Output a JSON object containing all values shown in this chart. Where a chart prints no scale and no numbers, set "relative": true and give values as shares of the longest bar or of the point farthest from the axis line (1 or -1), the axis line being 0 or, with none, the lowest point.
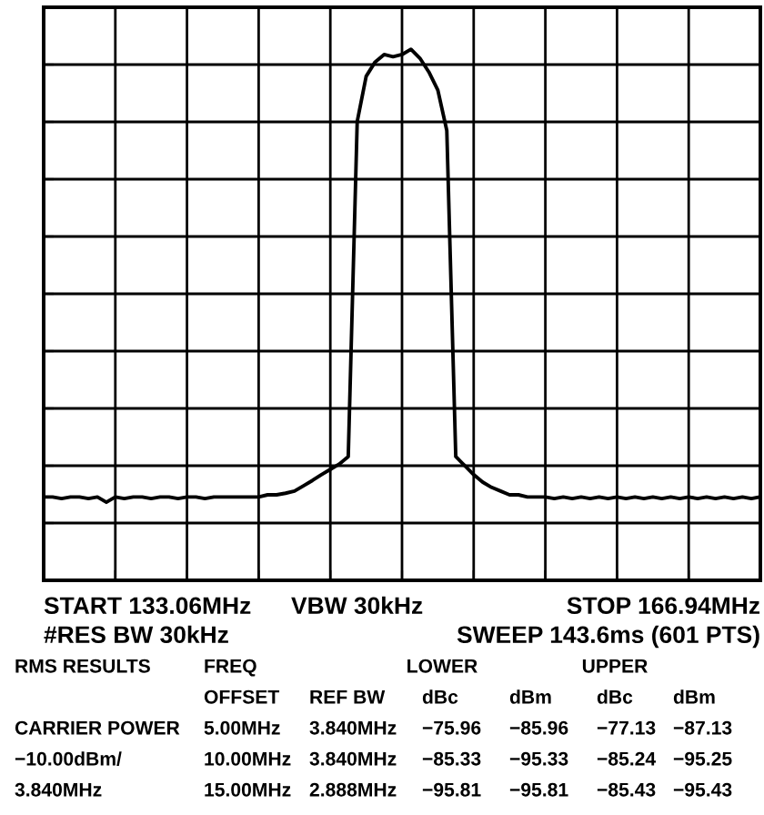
{
  "chart_data": {
    "type": "line",
    "relative": true,
    "categories": [
      null,
      null,
      null,
      null,
      null,
      null,
      null,
      null,
      null,
      null,
      null,
      null,
      null,
      null,
      null,
      null,
      null,
      null,
      null,
      null,
      null,
      null,
      null,
      null,
      null,
      null,
      null,
      null,
      null,
      null,
      null,
      null,
      null,
      null,
      null,
      null,
      null,
      null,
      null,
      null,
      null,
      null,
      null,
      null,
      null,
      null,
      null,
      null,
      null,
      null,
      null,
      null,
      null,
      null,
      null,
      null,
      null,
      null,
      null,
      null,
      null,
      null,
      null,
      null,
      null,
      null,
      null,
      null,
      null,
      null,
      null,
      null,
      null,
      null,
      null,
      null,
      null,
      null,
      null,
      null,
      null
    ],
    "series": [
      {
        "color": "#000000",
        "values": [
          0.157,
          0.157,
          0.154,
          0.157,
          0.157,
          0.154,
          0.157,
          0.147,
          0.157,
          0.154,
          0.157,
          0.157,
          0.154,
          0.157,
          0.157,
          0.154,
          0.157,
          0.157,
          0.154,
          0.157,
          0.157,
          0.157,
          0.157,
          0.157,
          0.157,
          0.161,
          0.161,
          0.164,
          0.168,
          0.178,
          0.188,
          0.199,
          0.209,
          0.219,
          0.233,
          0.864,
          0.949,
          0.976,
          0.99,
          0.986,
          0.99,
          1.0,
          0.983,
          0.957,
          0.923,
          0.847,
          0.233,
          0.216,
          0.199,
          0.185,
          0.175,
          0.168,
          0.161,
          0.161,
          0.157,
          0.157,
          0.157,
          0.154,
          0.157,
          0.154,
          0.157,
          0.154,
          0.157,
          0.154,
          0.157,
          0.154,
          0.157,
          0.154,
          0.157,
          0.154,
          0.157,
          0.154,
          0.157,
          0.154,
          0.157,
          0.154,
          0.157,
          0.154,
          0.157,
          0.154,
          0.157
        ]
      }
    ],
    "grid": true,
    "line_style": "solid",
    "marker": "none",
    "annotations": [
      "START 133.06MHz",
      "VBW 30kHz",
      "STOP 166.94MHz",
      "#RES BW 30kHz",
      "SWEEP 143.6ms (601 PTS)",
      "RMS RESULTS",
      "FREQ",
      "LOWER",
      "UPPER",
      "OFFSET",
      "REF BW",
      "dBc",
      "dBm",
      "dBc",
      "dBm",
      "CARRIER POWER",
      "5.00MHz",
      "3.840MHz",
      "−75.96",
      "−85.96",
      "−77.13",
      "−87.13",
      "−10.00dBm/",
      "10.00MHz",
      "3.840MHz",
      "−85.33",
      "−95.33",
      "−85.24",
      "−95.25",
      "3.840MHz",
      "15.00MHz",
      "2.888MHz",
      "−95.81",
      "−95.81",
      "−85.43",
      "−95.43"
    ]
  }
}
